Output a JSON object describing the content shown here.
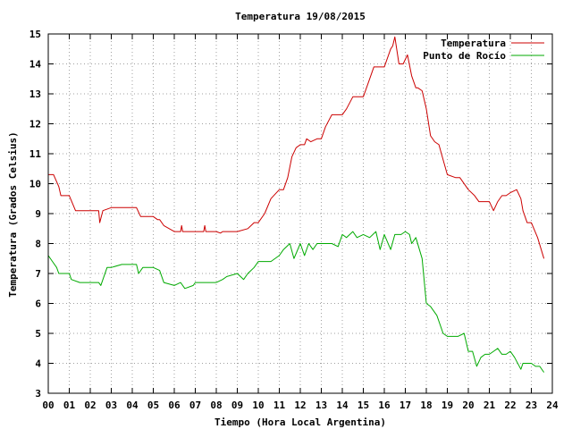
{
  "chart_data": {
    "type": "line",
    "title": "Temperatura 19/08/2015",
    "xlabel": "Tiempo (Hora Local Argentina)",
    "ylabel": "Temperatura (Grados Celsius)",
    "xlim": [
      0,
      24
    ],
    "ylim": [
      3,
      15
    ],
    "x_ticks": [
      "00",
      "01",
      "02",
      "03",
      "04",
      "05",
      "06",
      "07",
      "08",
      "09",
      "10",
      "11",
      "12",
      "13",
      "14",
      "15",
      "16",
      "17",
      "18",
      "19",
      "20",
      "21",
      "22",
      "23",
      "24"
    ],
    "y_ticks": [
      "3",
      "4",
      "5",
      "6",
      "7",
      "8",
      "9",
      "10",
      "11",
      "12",
      "13",
      "14",
      "15"
    ],
    "grid": true,
    "legend_position": "top-right",
    "series": [
      {
        "name": "Temperatura",
        "color": "#cc0000",
        "x": [
          0.0,
          0.25,
          0.5,
          0.6,
          1.0,
          1.3,
          1.5,
          2.0,
          2.4,
          2.45,
          2.6,
          3.0,
          3.5,
          4.0,
          4.2,
          4.4,
          4.6,
          5.0,
          5.2,
          5.3,
          5.5,
          6.0,
          6.3,
          6.35,
          6.4,
          6.5,
          7.0,
          7.4,
          7.45,
          7.5,
          8.0,
          8.2,
          8.3,
          8.5,
          9.0,
          9.5,
          9.8,
          10.0,
          10.3,
          10.6,
          11.0,
          11.2,
          11.4,
          11.6,
          11.8,
          12.0,
          12.2,
          12.3,
          12.5,
          12.8,
          13.0,
          13.2,
          13.5,
          14.0,
          14.2,
          14.5,
          15.0,
          15.3,
          15.5,
          15.7,
          16.0,
          16.3,
          16.4,
          16.5,
          16.7,
          16.9,
          17.1,
          17.3,
          17.5,
          17.6,
          17.8,
          18.0,
          18.2,
          18.4,
          18.6,
          18.8,
          19.0,
          19.4,
          19.6,
          20.0,
          20.3,
          20.5,
          20.8,
          21.0,
          21.2,
          21.4,
          21.6,
          21.8,
          22.0,
          22.3,
          22.5,
          22.6,
          22.8,
          23.0,
          23.3,
          23.6
        ],
        "values": [
          10.3,
          10.3,
          9.9,
          9.6,
          9.6,
          9.1,
          9.1,
          9.1,
          9.1,
          8.7,
          9.1,
          9.2,
          9.2,
          9.2,
          9.2,
          8.9,
          8.9,
          8.9,
          8.8,
          8.8,
          8.6,
          8.4,
          8.4,
          8.6,
          8.4,
          8.4,
          8.4,
          8.4,
          8.6,
          8.4,
          8.4,
          8.35,
          8.4,
          8.4,
          8.4,
          8.5,
          8.7,
          8.7,
          9.0,
          9.5,
          9.8,
          9.8,
          10.2,
          10.9,
          11.2,
          11.3,
          11.3,
          11.5,
          11.4,
          11.5,
          11.5,
          11.9,
          12.3,
          12.3,
          12.5,
          12.9,
          12.9,
          13.5,
          13.9,
          13.9,
          13.9,
          14.5,
          14.6,
          14.9,
          14.0,
          14.0,
          14.3,
          13.6,
          13.2,
          13.2,
          13.1,
          12.5,
          11.6,
          11.4,
          11.3,
          10.8,
          10.3,
          10.2,
          10.2,
          9.8,
          9.6,
          9.4,
          9.4,
          9.4,
          9.1,
          9.4,
          9.6,
          9.6,
          9.7,
          9.8,
          9.5,
          9.1,
          8.7,
          8.7,
          8.2,
          7.5
        ]
      },
      {
        "name": "Punto de Rocío",
        "color": "#00aa00",
        "x": [
          0.0,
          0.2,
          0.4,
          0.5,
          1.0,
          1.1,
          1.5,
          2.0,
          2.4,
          2.5,
          2.8,
          3.0,
          3.5,
          3.8,
          4.2,
          4.3,
          4.5,
          5.0,
          5.3,
          5.5,
          6.0,
          6.3,
          6.5,
          6.9,
          7.0,
          7.3,
          7.5,
          8.0,
          8.3,
          8.5,
          9.0,
          9.3,
          9.5,
          9.8,
          10.0,
          10.3,
          10.6,
          11.0,
          11.2,
          11.5,
          11.7,
          12.0,
          12.2,
          12.4,
          12.6,
          12.8,
          13.0,
          13.3,
          13.5,
          13.8,
          14.0,
          14.2,
          14.5,
          14.7,
          15.0,
          15.3,
          15.6,
          15.8,
          16.0,
          16.3,
          16.5,
          16.8,
          17.0,
          17.2,
          17.3,
          17.5,
          17.8,
          18.0,
          18.2,
          18.5,
          18.8,
          19.0,
          19.3,
          19.5,
          19.8,
          20.0,
          20.2,
          20.4,
          20.6,
          20.8,
          21.0,
          21.2,
          21.4,
          21.6,
          21.8,
          22.0,
          22.2,
          22.5,
          22.6,
          22.8,
          23.0,
          23.2,
          23.4,
          23.6
        ],
        "values": [
          7.6,
          7.4,
          7.2,
          7.0,
          7.0,
          6.8,
          6.7,
          6.7,
          6.7,
          6.6,
          7.2,
          7.2,
          7.3,
          7.3,
          7.3,
          7.0,
          7.2,
          7.2,
          7.1,
          6.7,
          6.6,
          6.7,
          6.5,
          6.6,
          6.7,
          6.7,
          6.7,
          6.7,
          6.8,
          6.9,
          7.0,
          6.8,
          7.0,
          7.2,
          7.4,
          7.4,
          7.4,
          7.6,
          7.8,
          8.0,
          7.5,
          8.0,
          7.6,
          8.0,
          7.8,
          8.0,
          8.0,
          8.0,
          8.0,
          7.9,
          8.3,
          8.2,
          8.4,
          8.2,
          8.3,
          8.2,
          8.4,
          7.8,
          8.3,
          7.8,
          8.3,
          8.3,
          8.4,
          8.3,
          8.0,
          8.2,
          7.5,
          6.0,
          5.9,
          5.6,
          5.0,
          4.9,
          4.9,
          4.9,
          5.0,
          4.4,
          4.4,
          3.9,
          4.2,
          4.3,
          4.3,
          4.4,
          4.5,
          4.3,
          4.3,
          4.4,
          4.2,
          3.8,
          4.0,
          4.0,
          4.0,
          3.9,
          3.9,
          3.7
        ]
      }
    ]
  }
}
